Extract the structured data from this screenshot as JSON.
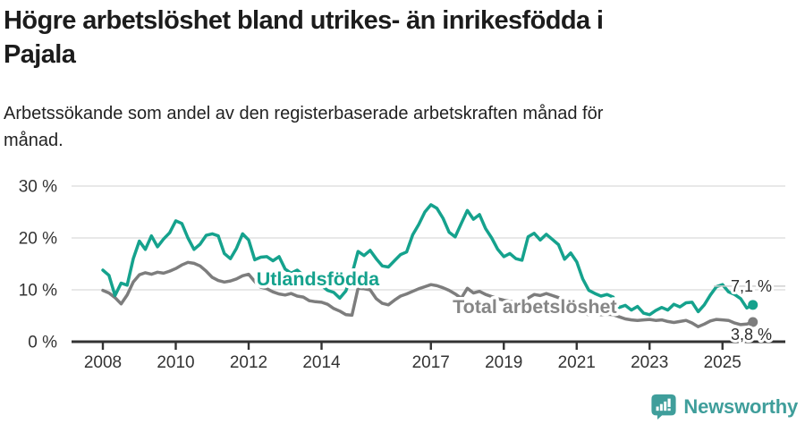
{
  "header": {
    "title_line1": "Högre arbetslöshet bland utrikes- än inrikesfödda i",
    "title_line2": "Pajala",
    "subtitle_line1": "Arbetssökande som andel av den registerbaserade arbetskraften månad för",
    "subtitle_line2": "månad."
  },
  "footer": {
    "brand": "Newsworthy",
    "logo_icon": "bar-chart-speech-bubble-icon",
    "logo_color": "#3f9e9b"
  },
  "colors": {
    "accent_teal": "#15a28d",
    "neutral_gray": "#7d7d7d",
    "grid": "#d9d9d9",
    "axis": "#333333",
    "end_label_text": "#2d2d2d",
    "leader": "#cfcfcf"
  },
  "chart_data": {
    "type": "line",
    "title": "Högre arbetslöshet bland utrikes- än inrikesfödda i Pajala",
    "subtitle": "Arbetssökande som andel av den registerbaserade arbetskraften månad för månad.",
    "xlabel": "",
    "ylabel": "",
    "grid": "horizontal",
    "xlim": [
      2007.3,
      2026.7
    ],
    "ylim": [
      0,
      34
    ],
    "x_start": 2008.0,
    "x_step": 0.166667,
    "x_ticks": [
      2008,
      2010,
      2012,
      2014,
      2017,
      2019,
      2021,
      2023,
      2025
    ],
    "y_ticks": [
      {
        "value": 0,
        "label": "0 %"
      },
      {
        "value": 10,
        "label": "10 %"
      },
      {
        "value": 20,
        "label": "20 %"
      },
      {
        "value": 30,
        "label": "30 %"
      }
    ],
    "annotations": [
      {
        "text": "Utlandsfödda",
        "x": 2013.9,
        "y": 12.1,
        "color": "#15a28d"
      },
      {
        "text": "Total arbetslöshet",
        "x": 2019.85,
        "y": 6.7,
        "color": "#868686"
      }
    ],
    "series": [
      {
        "id": "utlandsfodda",
        "name": "Utlandsfödda",
        "color": "#15a28d",
        "end_label": "7,1 %",
        "end_value": 7.1,
        "label_side": "above",
        "leader_line": true,
        "values": [
          13.8,
          12.8,
          8.9,
          11.3,
          10.9,
          16.0,
          19.4,
          17.8,
          20.4,
          18.3,
          19.8,
          21.0,
          23.3,
          22.8,
          20.0,
          17.8,
          18.8,
          20.5,
          20.8,
          20.4,
          17.0,
          16.0,
          18.0,
          20.8,
          19.6,
          15.8,
          16.3,
          16.4,
          15.6,
          16.4,
          14.0,
          13.2,
          13.8,
          12.8,
          12.2,
          11.4,
          10.8,
          9.9,
          9.5,
          8.4,
          9.8,
          13.0,
          17.4,
          16.6,
          17.6,
          16.0,
          14.6,
          14.4,
          15.6,
          16.8,
          17.3,
          20.6,
          22.6,
          25.0,
          26.4,
          25.7,
          23.8,
          21.1,
          20.2,
          22.8,
          25.3,
          23.6,
          24.5,
          21.8,
          20.0,
          17.8,
          16.4,
          17.0,
          16.0,
          15.7,
          20.2,
          20.9,
          19.6,
          20.7,
          19.7,
          18.7,
          15.9,
          17.1,
          15.4,
          12.1,
          9.9,
          9.3,
          8.8,
          9.1,
          8.6,
          6.6,
          7.0,
          6.1,
          6.8,
          5.5,
          5.2,
          6.0,
          6.6,
          6.1,
          7.2,
          6.7,
          7.5,
          7.6,
          5.8,
          7.1,
          9.0,
          10.6,
          11.0,
          9.6,
          9.1,
          8.3,
          6.5,
          7.1
        ]
      },
      {
        "id": "total-arbetsloshet",
        "name": "Total arbetslöshet",
        "color": "#7d7d7d",
        "end_label": "3,8 %",
        "end_value": 3.8,
        "label_side": "below",
        "leader_line": false,
        "values": [
          9.9,
          9.4,
          8.5,
          7.3,
          9.0,
          11.5,
          12.9,
          13.3,
          13.0,
          13.4,
          13.2,
          13.6,
          14.1,
          14.8,
          15.3,
          15.1,
          14.6,
          13.6,
          12.4,
          11.8,
          11.5,
          11.7,
          12.1,
          12.7,
          13.0,
          11.6,
          10.5,
          10.2,
          9.6,
          9.2,
          9.0,
          9.3,
          8.8,
          8.6,
          7.9,
          7.7,
          7.6,
          7.2,
          6.4,
          5.9,
          5.2,
          5.1,
          10.3,
          10.2,
          10.0,
          8.3,
          7.4,
          7.1,
          8.0,
          8.8,
          9.2,
          9.7,
          10.2,
          10.6,
          11.0,
          10.8,
          10.4,
          9.9,
          9.2,
          8.4,
          10.3,
          9.4,
          9.7,
          9.1,
          8.7,
          8.3,
          8.0,
          7.8,
          7.6,
          7.5,
          8.4,
          9.1,
          8.9,
          9.3,
          8.9,
          8.5,
          7.9,
          7.1,
          6.3,
          5.5,
          5.2,
          5.4,
          5.2,
          5.3,
          5.2,
          4.8,
          4.4,
          4.2,
          4.1,
          4.2,
          4.3,
          4.1,
          4.2,
          3.9,
          3.7,
          3.9,
          4.1,
          3.6,
          2.9,
          3.4,
          4.0,
          4.3,
          4.2,
          4.1,
          3.6,
          3.3,
          3.4,
          3.8
        ]
      }
    ]
  }
}
